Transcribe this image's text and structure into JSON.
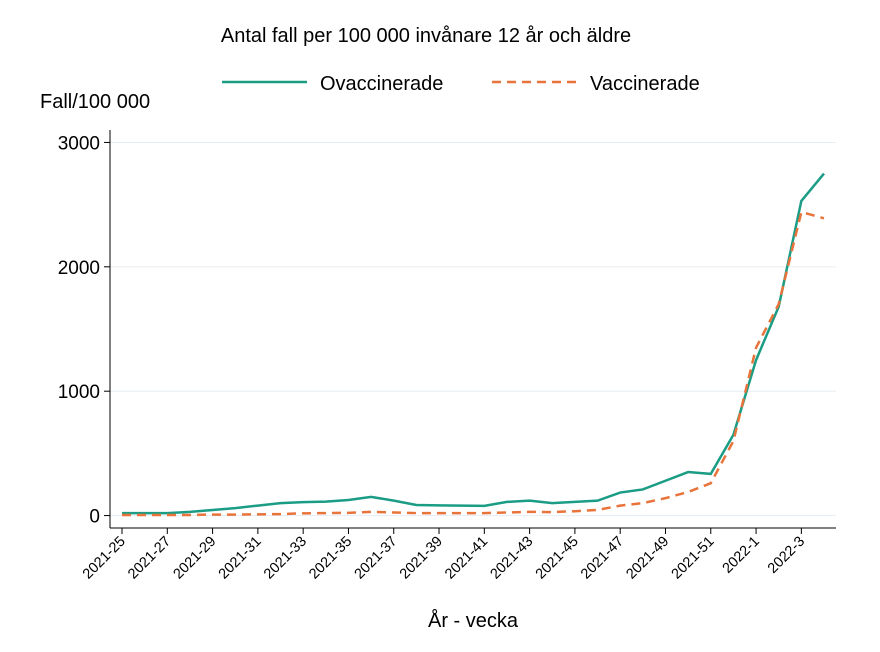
{
  "chart_data": {
    "type": "line",
    "title": "Antal fall per 100 000 invånare 12 år och äldre",
    "y_label": "Fall/100 000",
    "x_label": "År - vecka",
    "categories": [
      "2021-25",
      null,
      "2021-27",
      null,
      "2021-29",
      null,
      "2021-31",
      null,
      "2021-33",
      null,
      "2021-35",
      null,
      "2021-37",
      null,
      "2021-39",
      null,
      "2021-41",
      null,
      "2021-43",
      null,
      "2021-45",
      null,
      "2021-47",
      null,
      "2021-49",
      null,
      "2021-51",
      null,
      "2022-1",
      null,
      "2022-3",
      null
    ],
    "series": [
      {
        "name": "Ovaccinerade",
        "color": "#1a9c85",
        "dash": false,
        "values": [
          20,
          20,
          20,
          30,
          45,
          60,
          80,
          100,
          108,
          112,
          125,
          150,
          120,
          85,
          82,
          80,
          78,
          110,
          120,
          100,
          110,
          120,
          185,
          210,
          280,
          350,
          335,
          650,
          1250,
          1680,
          2530,
          2750
        ]
      },
      {
        "name": "Vaccinerade",
        "color": "#e8743b",
        "dash": true,
        "values": [
          5,
          5,
          5,
          5,
          8,
          8,
          10,
          12,
          18,
          20,
          22,
          30,
          25,
          20,
          20,
          20,
          20,
          25,
          30,
          28,
          35,
          45,
          80,
          100,
          140,
          190,
          260,
          600,
          1350,
          1700,
          2440,
          2390
        ]
      }
    ],
    "ylim": [
      -100,
      3100
    ],
    "yticks": [
      0,
      1000,
      2000,
      3000
    ],
    "grid": true,
    "legend": "top"
  }
}
